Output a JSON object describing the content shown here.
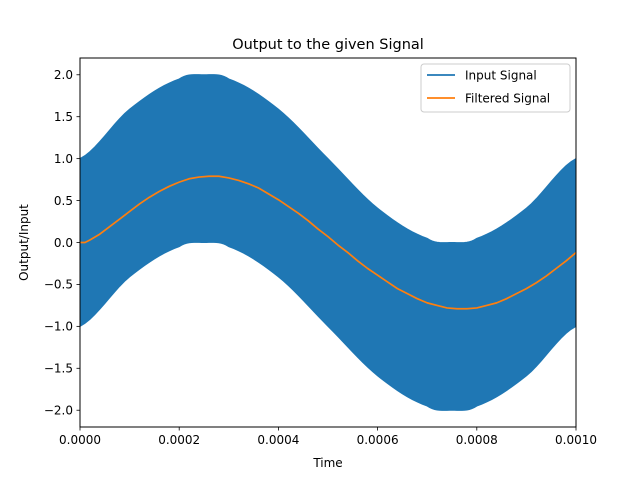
{
  "chart_data": {
    "type": "line",
    "title": "Output to the given Signal",
    "xlabel": "Time",
    "ylabel": "Output/Input",
    "xlim": [
      0,
      0.001
    ],
    "ylim": [
      -2.2,
      2.2
    ],
    "xticks": [
      0,
      0.0002,
      0.0004,
      0.0006,
      0.0008,
      0.001
    ],
    "xtick_labels": [
      "0.0000",
      "0.0002",
      "0.0004",
      "0.0006",
      "0.0008",
      "0.0010"
    ],
    "yticks": [
      -2.0,
      -1.5,
      -1.0,
      -0.5,
      0.0,
      0.5,
      1.0,
      1.5,
      2.0
    ],
    "ytick_labels": [
      "−2.0",
      "−1.5",
      "−1.0",
      "−0.5",
      "0.0",
      "0.5",
      "1.0",
      "1.5",
      "2.0"
    ],
    "grid": false,
    "legend_position": "top-right",
    "series": [
      {
        "name": "Input Signal",
        "color": "#1f77b4",
        "style": "filled envelope (high-frequency oscillation)",
        "x": [
          0,
          0.0001,
          0.0002,
          0.00025,
          0.0003,
          0.0004,
          0.0005,
          0.0006,
          0.0007,
          0.00075,
          0.0008,
          0.0009,
          0.001
        ],
        "upper": [
          1.0,
          1.59,
          1.95,
          2.0,
          1.95,
          1.59,
          1.0,
          0.41,
          0.05,
          0.0,
          0.05,
          0.41,
          1.0
        ],
        "lower": [
          -1.0,
          -0.41,
          -0.05,
          0.0,
          -0.05,
          -0.41,
          -1.0,
          -1.59,
          -1.95,
          -2.0,
          -1.95,
          -1.59,
          -1.0
        ]
      },
      {
        "name": "Filtered Signal",
        "color": "#ff7f0e",
        "x": [
          0,
          1e-05,
          2e-05,
          4e-05,
          6e-05,
          8e-05,
          0.0001,
          0.00012,
          0.00014,
          0.00016,
          0.00018,
          0.0002,
          0.00022,
          0.00024,
          0.00026,
          0.00028,
          0.0003,
          0.00032,
          0.00034,
          0.00036,
          0.00038,
          0.0004,
          0.00042,
          0.00044,
          0.00046,
          0.00048,
          0.0005,
          0.00052,
          0.00054,
          0.00056,
          0.00058,
          0.0006,
          0.00062,
          0.00064,
          0.00066,
          0.00068,
          0.0007,
          0.00072,
          0.00074,
          0.00076,
          0.00078,
          0.0008,
          0.00082,
          0.00084,
          0.00086,
          0.00088,
          0.0009,
          0.00092,
          0.00094,
          0.00096,
          0.00098,
          0.001
        ],
        "y": [
          0.0,
          0.0,
          0.03,
          0.1,
          0.19,
          0.28,
          0.37,
          0.46,
          0.54,
          0.61,
          0.67,
          0.72,
          0.76,
          0.78,
          0.79,
          0.79,
          0.77,
          0.74,
          0.7,
          0.65,
          0.58,
          0.51,
          0.43,
          0.35,
          0.26,
          0.16,
          0.07,
          -0.03,
          -0.12,
          -0.22,
          -0.31,
          -0.39,
          -0.47,
          -0.55,
          -0.61,
          -0.67,
          -0.72,
          -0.75,
          -0.78,
          -0.79,
          -0.79,
          -0.78,
          -0.75,
          -0.72,
          -0.67,
          -0.61,
          -0.55,
          -0.48,
          -0.4,
          -0.31,
          -0.22,
          -0.12
        ]
      }
    ]
  }
}
